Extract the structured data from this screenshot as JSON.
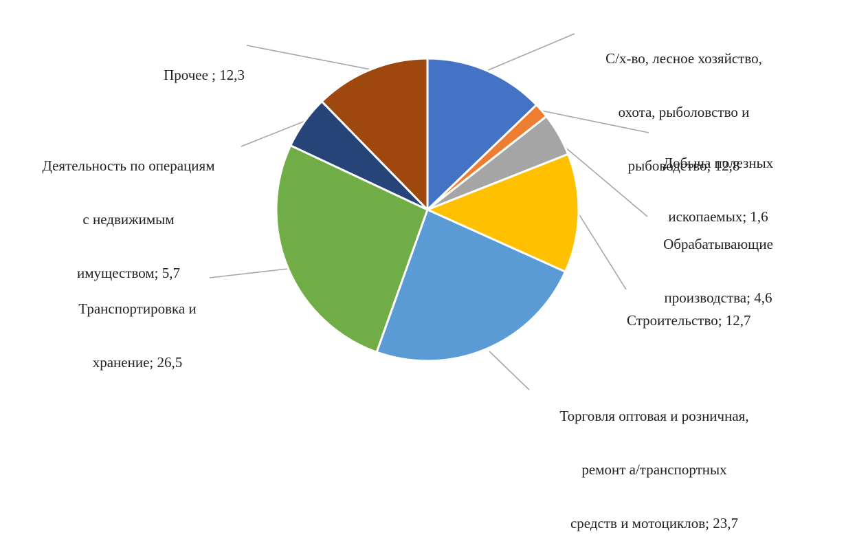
{
  "chart_data": {
    "type": "pie",
    "title": "",
    "unit": "%",
    "slices": [
      {
        "lines": [
          "С/х-во, лесное хозяйство,",
          "охота, рыболовство и",
          "рыбоводство; 12,8"
        ],
        "value": 12.8,
        "color": "#4472C4"
      },
      {
        "lines": [
          "Добыча полезных",
          "ископаемых; 1,6"
        ],
        "value": 1.6,
        "color": "#ED7D31"
      },
      {
        "lines": [
          "Обрабатывающие",
          "производства; 4,6"
        ],
        "value": 4.6,
        "color": "#A5A5A5"
      },
      {
        "lines": [
          "Строительство; 12,7"
        ],
        "value": 12.7,
        "color": "#FFC000"
      },
      {
        "lines": [
          "Торговля оптовая и розничная,",
          "ремонт а/транспортных",
          "средств и мотоциклов; 23,7"
        ],
        "value": 23.7,
        "color": "#5B9BD5"
      },
      {
        "lines": [
          "Транспортировка и",
          "хранение; 26,5"
        ],
        "value": 26.5,
        "color": "#70AD47"
      },
      {
        "lines": [
          "Деятельность по операциям",
          "с недвижимым",
          "имуществом; 5,7"
        ],
        "value": 5.7,
        "color": "#264478"
      },
      {
        "lines": [
          "Прочее ; 12,3"
        ],
        "value": 12.3,
        "color": "#9E480E"
      }
    ]
  }
}
